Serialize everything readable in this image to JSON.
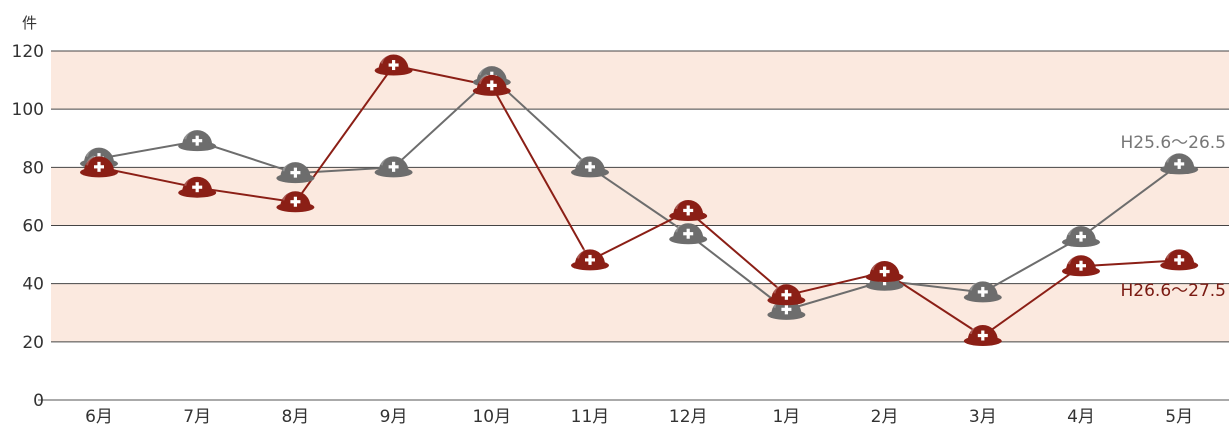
{
  "chart_data": {
    "type": "line",
    "unit_label": "件",
    "categories": [
      "6月",
      "7月",
      "8月",
      "9月",
      "10月",
      "11月",
      "12月",
      "1月",
      "2月",
      "3月",
      "4月",
      "5月"
    ],
    "ylim": [
      0,
      120
    ],
    "yticks": [
      0,
      20,
      40,
      60,
      80,
      100,
      120
    ],
    "grid": true,
    "band_color": "#fbe9df",
    "marker": "helmet-icon",
    "series": [
      {
        "name": "H25.6～26.5",
        "color": "#6d6d6d",
        "label_color": "#777777",
        "values": [
          83,
          89,
          78,
          80,
          111,
          80,
          57,
          31,
          41,
          37,
          56,
          81
        ]
      },
      {
        "name": "H26.6～27.5",
        "color": "#8b1f16",
        "label_color": "#7a1a12",
        "values": [
          80,
          73,
          68,
          115,
          108,
          48,
          65,
          36,
          44,
          22,
          46,
          48
        ]
      }
    ]
  }
}
